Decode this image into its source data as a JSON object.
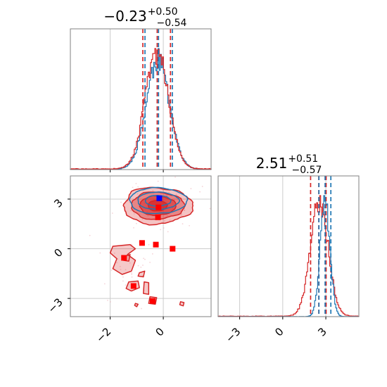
{
  "chart_data": [
    {
      "type": "histogram",
      "panel": "top-left",
      "title": {
        "main": "−0.23",
        "sup": "+0.50",
        "sub": "−0.54"
      },
      "xlim": [
        -3.5,
        1.8
      ],
      "x_ticks": [
        -2,
        0
      ],
      "grid": true,
      "series": [
        {
          "color": "#d62728",
          "quantiles": [
            -0.77,
            -0.23,
            0.27
          ]
        },
        {
          "color": "#1f77b4",
          "quantiles": [
            -0.69,
            -0.18,
            0.34
          ]
        }
      ]
    },
    {
      "type": "scatter",
      "panel": "bottom-left",
      "xlim": [
        -3.5,
        1.8
      ],
      "ylim": [
        -4.1,
        4.4
      ],
      "x_ticks": [
        -2,
        0
      ],
      "y_ticks": [
        3,
        0,
        -3
      ],
      "x_tick_labels": [
        "−2",
        "0"
      ],
      "y_tick_labels": [
        "3",
        "0",
        "−3"
      ],
      "grid": true,
      "contours": [
        {
          "color": "#d62728",
          "filled": true,
          "label": "red 2D posterior density"
        },
        {
          "color": "#1f77b4",
          "filled": false,
          "label": "blue 2D posterior density"
        }
      ],
      "points": [
        {
          "x": -0.15,
          "y": 3.05,
          "color": "#0000ff"
        },
        {
          "x": -0.18,
          "y": 2.5,
          "color": "#ff0000"
        },
        {
          "x": -0.2,
          "y": 1.9,
          "color": "#ff0000"
        },
        {
          "x": -0.8,
          "y": 0.35,
          "color": "#ff0000"
        },
        {
          "x": -0.28,
          "y": 0.25,
          "color": "#ff0000"
        },
        {
          "x": 0.35,
          "y": 0.0,
          "color": "#ff0000"
        },
        {
          "x": -1.48,
          "y": -0.55,
          "color": "#ff0000"
        },
        {
          "x": -1.12,
          "y": -2.25,
          "color": "#ff0000"
        },
        {
          "x": -0.4,
          "y": -3.15,
          "color": "#ff0000"
        }
      ]
    },
    {
      "type": "histogram",
      "panel": "bottom-right",
      "title": {
        "main": "2.51",
        "sup": "+0.51",
        "sub": "−0.57"
      },
      "xlim": [
        -4.5,
        5.3
      ],
      "x_ticks": [
        -3,
        0,
        3
      ],
      "x_tick_labels": [
        "−3",
        "0",
        "3"
      ],
      "grid": true,
      "series": [
        {
          "color": "#d62728",
          "quantiles": [
            1.94,
            2.51,
            3.02
          ]
        },
        {
          "color": "#1f77b4",
          "quantiles": [
            2.52,
            2.95,
            3.35
          ]
        }
      ]
    }
  ]
}
